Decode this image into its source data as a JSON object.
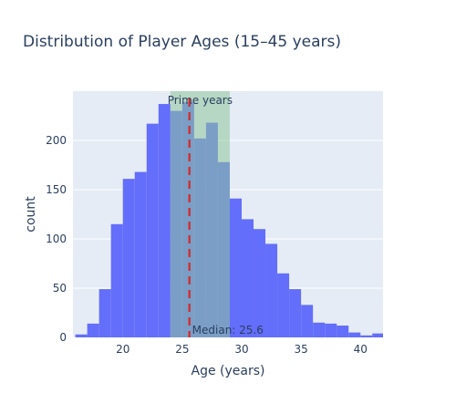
{
  "chart_data": {
    "type": "bar",
    "title": "Distribution of Player Ages (15–45 years)",
    "xlabel": "Age (years)",
    "ylabel": "count",
    "xlim": [
      15.8,
      41.9
    ],
    "ylim": [
      0,
      250
    ],
    "xticks": [
      20,
      25,
      30,
      35,
      40
    ],
    "yticks": [
      0,
      50,
      100,
      150,
      200
    ],
    "bin_width": 1,
    "bins_start": [
      16,
      17,
      18,
      19,
      20,
      21,
      22,
      23,
      24,
      25,
      26,
      27,
      28,
      29,
      30,
      31,
      32,
      33,
      34,
      35,
      36,
      37,
      38,
      39,
      40,
      41
    ],
    "values": [
      3,
      14,
      49,
      115,
      161,
      168,
      217,
      237,
      230,
      239,
      202,
      218,
      178,
      141,
      120,
      110,
      95,
      65,
      49,
      33,
      15,
      14,
      12,
      5,
      2,
      4
    ],
    "prime_band": {
      "x0": 24,
      "x1": 29,
      "label": "Prime years"
    },
    "median": {
      "value": 25.6,
      "label": "Median: 25.6"
    },
    "colors": {
      "bar": "#636efa",
      "plot_bg": "#e5ecf6",
      "grid": "#ffffff",
      "band": "#8fc79a",
      "median_line": "#d62728",
      "text": "#2a3f5f"
    }
  }
}
